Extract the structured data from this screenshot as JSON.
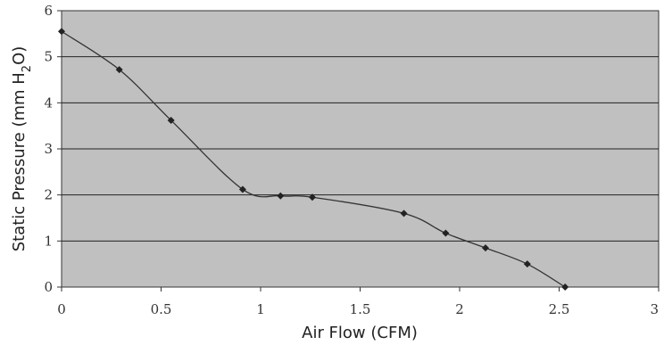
{
  "chart_data": {
    "type": "line",
    "title": "",
    "xlabel": "Air Flow (CFM)",
    "ylabel_parts": [
      "Static Pressure (mm H",
      "2",
      "O)"
    ],
    "xlim": [
      0,
      3
    ],
    "ylim": [
      0,
      6
    ],
    "x_ticks": [
      "0",
      "0.5",
      "1",
      "1.5",
      "2",
      "2.5",
      "3"
    ],
    "y_ticks": [
      "0",
      "1",
      "2",
      "3",
      "4",
      "5",
      "6"
    ],
    "grid": "horizontal",
    "colors": {
      "plot_bg": "#c0c0c0",
      "line": "#333333",
      "grid": "#222222",
      "marker": "#222222"
    },
    "series": [
      {
        "x": [
          0,
          0.29,
          0.55,
          0.91,
          1.1,
          1.26,
          1.72,
          1.93,
          2.13,
          2.34,
          2.53
        ],
        "y": [
          5.55,
          4.72,
          3.62,
          2.12,
          1.98,
          1.95,
          1.6,
          1.17,
          0.85,
          0.5,
          0.0
        ]
      }
    ]
  }
}
